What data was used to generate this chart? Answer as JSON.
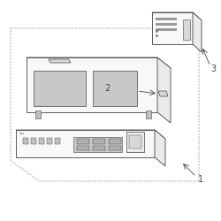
{
  "bg_color": "#ffffff",
  "line_color": "#444444",
  "dash_color": "#888888",
  "fill_white": "#f8f8f8",
  "fill_light": "#ebebeb",
  "fill_mid": "#d8d8d8",
  "fill_dark": "#c0c0c0",
  "fill_display": "#c8c8c8",
  "label_1": "1",
  "label_2": "2",
  "label_3": "3",
  "fig_width": 2.5,
  "fig_height": 2.5,
  "dpi": 100
}
